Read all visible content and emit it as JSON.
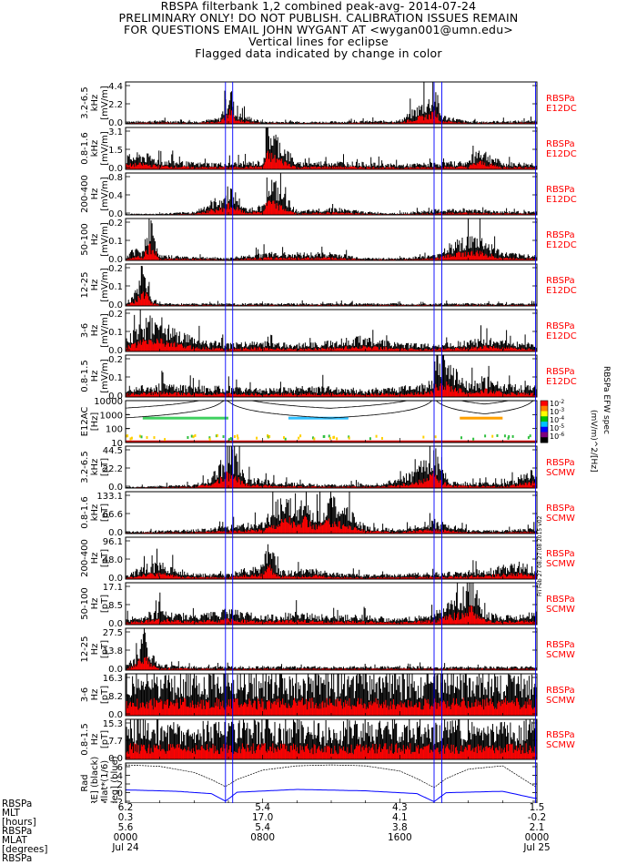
{
  "header": {
    "title": "RBSPA filterbank 1,2 combined peak-avg- 2014-07-24",
    "line2": "PRELIMINARY ONLY! DO NOT PUBLISH. CALIBRATION ISSUES REMAIN",
    "line3": "FOR QUESTIONS EMAIL JOHN WYGANT AT <wygan001@umn.edu>",
    "line4": "Vertical lines for eclipse",
    "line5": "Flagged data indicated by change in color"
  },
  "colors": {
    "frame": "#000000",
    "trace": "#000000",
    "flagged": "#ff0000",
    "eclipse": "#0000ff",
    "label": "#ff0000",
    "position": "#0000ff"
  },
  "eclipse_times_hours": [
    5.83,
    6.25,
    18.0,
    18.45,
    23.92
  ],
  "chart_data": [
    {
      "type": "area",
      "panel": "e12dc-3.2-6.5khz",
      "ylabel": [
        "3.2-6.5",
        "kHz",
        "[mV/m]"
      ],
      "yticks": [
        "4.4",
        "2.2",
        "0.0"
      ],
      "ylim": [
        0,
        4.4
      ],
      "tag": [
        "RBSPa",
        "E12DC"
      ],
      "series": [
        {
          "name": "peak",
          "x": [
            0,
            2,
            4,
            5.5,
            5.9,
            6.1,
            6.4,
            8,
            12,
            16,
            17.9,
            18.1,
            18.4,
            20,
            24
          ],
          "y": [
            0.2,
            0.3,
            0.2,
            0.5,
            2.2,
            3.6,
            1.0,
            0.2,
            0.2,
            0.3,
            2.5,
            3.2,
            0.8,
            0.2,
            0.3
          ]
        }
      ]
    },
    {
      "type": "area",
      "panel": "e12dc-0.8-1.6khz",
      "ylabel": [
        "0.8-1.6",
        "kHz",
        "[mV/m]"
      ],
      "yticks": [
        "3.1",
        "1.5",
        "0.0"
      ],
      "ylim": [
        0,
        3.1
      ],
      "tag": [
        "RBSPa",
        "E12DC"
      ],
      "series": [
        {
          "name": "peak",
          "x": [
            0,
            1,
            2,
            4,
            6,
            8,
            8.3,
            10,
            12,
            14,
            16,
            18,
            20,
            20.6,
            22,
            24
          ],
          "y": [
            0.8,
            1.0,
            0.6,
            0.4,
            0.4,
            0.5,
            2.8,
            0.4,
            0.5,
            0.4,
            0.3,
            0.4,
            0.5,
            1.4,
            0.4,
            0.4
          ]
        }
      ]
    },
    {
      "type": "area",
      "panel": "e12dc-200-400hz",
      "ylabel": [
        "200-400",
        "Hz",
        "[mV/m]"
      ],
      "yticks": [
        "0.8",
        "0.4",
        "0.0"
      ],
      "ylim": [
        0,
        0.8
      ],
      "tag": [
        "RBSPa",
        "E12DC"
      ],
      "series": [
        {
          "name": "peak",
          "x": [
            0,
            2,
            4,
            5.9,
            6.0,
            7,
            8,
            8.3,
            10,
            12,
            14,
            16,
            18,
            20,
            22,
            24
          ],
          "y": [
            0.02,
            0.02,
            0.05,
            0.35,
            0.5,
            0.1,
            0.15,
            0.65,
            0.05,
            0.12,
            0.05,
            0.03,
            0.08,
            0.1,
            0.06,
            0.05
          ]
        }
      ]
    },
    {
      "type": "area",
      "panel": "e12dc-50-100hz",
      "ylabel": [
        "50-100",
        "Hz",
        "[mV/m]"
      ],
      "yticks": [
        "0.2",
        "0.1",
        "0.0"
      ],
      "ylim": [
        0,
        0.2
      ],
      "tag": [
        "RBSPa",
        "E12DC"
      ],
      "series": [
        {
          "name": "peak",
          "x": [
            0,
            0.5,
            1,
            1.4,
            2,
            6,
            8,
            12,
            14,
            16,
            18,
            19.5,
            20.1,
            20.7,
            22,
            24
          ],
          "y": [
            0.01,
            0.05,
            0.04,
            0.18,
            0.02,
            0.01,
            0.03,
            0.03,
            0.01,
            0.01,
            0.02,
            0.09,
            0.09,
            0.09,
            0.03,
            0.02
          ]
        }
      ]
    },
    {
      "type": "area",
      "panel": "e12dc-12-25hz",
      "ylabel": [
        "12-25",
        "Hz",
        "[mV/m]"
      ],
      "yticks": [
        "0.2",
        "0.1",
        "0.0"
      ],
      "ylim": [
        0,
        0.2
      ],
      "tag": [
        "RBSPa",
        "E12DC"
      ],
      "series": [
        {
          "name": "peak",
          "x": [
            0,
            0.5,
            0.8,
            1.0,
            1.2,
            1.6,
            2,
            4,
            8,
            12,
            16,
            20,
            24
          ],
          "y": [
            0.01,
            0.05,
            0.1,
            0.18,
            0.13,
            0.03,
            0.01,
            0.01,
            0.01,
            0.01,
            0.01,
            0.01,
            0.01
          ]
        }
      ]
    },
    {
      "type": "area",
      "panel": "e12dc-3-6hz",
      "ylabel": [
        "3-6",
        "Hz",
        "[mV/m]"
      ],
      "yticks": [
        "0.2",
        "0.1",
        "0.0"
      ],
      "ylim": [
        0,
        0.2
      ],
      "tag": [
        "RBSPa",
        "E12DC"
      ],
      "series": [
        {
          "name": "peak",
          "x": [
            0,
            1,
            2,
            3,
            4,
            6,
            8,
            10,
            12,
            14,
            16,
            18,
            20,
            21,
            22,
            24
          ],
          "y": [
            0.05,
            0.12,
            0.14,
            0.08,
            0.05,
            0.03,
            0.04,
            0.03,
            0.04,
            0.06,
            0.03,
            0.03,
            0.04,
            0.06,
            0.04,
            0.03
          ]
        }
      ]
    },
    {
      "type": "area",
      "panel": "e12dc-0.8-1.5hz",
      "ylabel": [
        "0.8-1.5",
        "Hz",
        "[mV/m]"
      ],
      "yticks": [
        "0.2",
        "0.1",
        "0.0"
      ],
      "ylim": [
        0,
        0.2
      ],
      "tag": [
        "RBSPa",
        "E12DC"
      ],
      "series": [
        {
          "name": "peak",
          "x": [
            0,
            2,
            4,
            6,
            8,
            10,
            12,
            14,
            16,
            18,
            18.2,
            20,
            21,
            22,
            24
          ],
          "y": [
            0.04,
            0.05,
            0.04,
            0.04,
            0.03,
            0.04,
            0.04,
            0.03,
            0.04,
            0.06,
            0.18,
            0.05,
            0.08,
            0.05,
            0.04
          ]
        }
      ]
    },
    {
      "type": "heatmap",
      "panel": "e12ac-spectrogram",
      "ylabel": [
        "E12AC",
        "[Hz]"
      ],
      "yticks": [
        "10000",
        "1000",
        "100",
        "10"
      ],
      "ylim": [
        10,
        10000
      ],
      "yscale": "log",
      "tag": [],
      "colorbar": {
        "ticks": [
          "10^-2",
          "10^-3",
          "10^-4",
          "10^-5",
          "10^-6"
        ],
        "label": "(mV/m)^2/[Hz]",
        "title": "RBSPa EFW spec"
      }
    },
    {
      "type": "area",
      "panel": "scmw-3.2-6.5khz",
      "ylabel": [
        "3.2-6.5",
        "kHz",
        "[pT]"
      ],
      "yticks": [
        "44.5",
        "22.2",
        "0.0"
      ],
      "ylim": [
        0,
        44.5
      ],
      "tag": [
        "RBSPa",
        "SCMW"
      ],
      "series": [
        {
          "name": "peak",
          "x": [
            0,
            2,
            4,
            5,
            5.5,
            6,
            6.4,
            7,
            9,
            12,
            15,
            17,
            18,
            18.3,
            19,
            22,
            23.8,
            24
          ],
          "y": [
            1,
            2,
            3,
            10,
            22,
            38,
            30,
            10,
            5,
            3,
            4,
            15,
            42,
            20,
            6,
            4,
            15,
            8
          ]
        }
      ]
    },
    {
      "type": "area",
      "panel": "scmw-0.8-1.6khz",
      "ylabel": [
        "0.8-1.6",
        "kHz",
        "[pT]"
      ],
      "yticks": [
        "133.1",
        "66.6",
        "0.0"
      ],
      "ylim": [
        0,
        133.1
      ],
      "tag": [
        "RBSPa",
        "SCMW"
      ],
      "series": [
        {
          "name": "peak",
          "x": [
            0,
            2,
            4,
            6,
            8,
            9,
            9.5,
            10,
            10.5,
            11,
            12,
            14,
            16,
            18,
            20,
            22,
            24
          ],
          "y": [
            5,
            8,
            10,
            20,
            30,
            90,
            125,
            60,
            110,
            50,
            100,
            20,
            10,
            35,
            10,
            8,
            15
          ]
        }
      ]
    },
    {
      "type": "area",
      "panel": "scmw-200-400hz",
      "ylabel": [
        "200-400",
        "Hz",
        "[pT]"
      ],
      "yticks": [
        "96.1",
        "48.0",
        "0.0"
      ],
      "ylim": [
        0,
        96.1
      ],
      "tag": [
        "RBSPa",
        "SCMW"
      ],
      "series": [
        {
          "name": "peak",
          "x": [
            0,
            1,
            2,
            3,
            4,
            6,
            7,
            8,
            8.3,
            9,
            11,
            12,
            14,
            16,
            18,
            20,
            22,
            23,
            24
          ],
          "y": [
            5,
            25,
            30,
            20,
            10,
            10,
            20,
            25,
            80,
            15,
            20,
            12,
            8,
            10,
            12,
            15,
            25,
            30,
            20
          ]
        }
      ]
    },
    {
      "type": "area",
      "panel": "scmw-50-100hz",
      "ylabel": [
        "50-100",
        "Hz",
        "[pT]"
      ],
      "yticks": [
        "17.1",
        "8.5",
        "0.0"
      ],
      "ylim": [
        0,
        17.1
      ],
      "tag": [
        "RBSPa",
        "SCMW"
      ],
      "series": [
        {
          "name": "peak",
          "x": [
            0,
            2,
            4,
            6,
            8,
            10,
            12,
            14,
            16,
            18,
            19.5,
            20.2,
            21,
            22,
            24
          ],
          "y": [
            2,
            5,
            3,
            5,
            3,
            4,
            3,
            3,
            2,
            4,
            11,
            16,
            4,
            3,
            4
          ]
        }
      ]
    },
    {
      "type": "area",
      "panel": "scmw-12-25hz",
      "ylabel": [
        "12-25",
        "Hz",
        "[pT]"
      ],
      "yticks": [
        "27.5",
        "13.8",
        "0.0"
      ],
      "ylim": [
        0,
        27.5
      ],
      "tag": [
        "RBSPa",
        "SCMW"
      ],
      "series": [
        {
          "name": "peak",
          "x": [
            0,
            0.6,
            0.9,
            1.1,
            1.4,
            2,
            4,
            8,
            12,
            16,
            20,
            24
          ],
          "y": [
            2,
            8,
            18,
            26,
            10,
            3,
            2,
            2,
            2,
            2,
            2,
            2
          ]
        }
      ]
    },
    {
      "type": "area",
      "panel": "scmw-3-6hz",
      "ylabel": [
        "3-6",
        "Hz",
        "[pT]"
      ],
      "yticks": [
        "16.3",
        "8.2",
        "0.0"
      ],
      "ylim": [
        0,
        16.3
      ],
      "tag": [
        "RBSPa",
        "SCMW"
      ],
      "series": [
        {
          "name": "peak",
          "x": [
            0,
            4,
            8,
            12,
            16,
            20,
            24
          ],
          "y": [
            13,
            13.5,
            13,
            13.5,
            13,
            13.5,
            13
          ]
        }
      ]
    },
    {
      "type": "area",
      "panel": "scmw-0.8-1.5hz",
      "ylabel": [
        "0.8-1.5",
        "Hz",
        "[pT]"
      ],
      "yticks": [
        "15.3",
        "7.7",
        "0.0"
      ],
      "ylim": [
        0,
        15.3
      ],
      "tag": [
        "RBSPa",
        "SCMW"
      ],
      "series": [
        {
          "name": "peak",
          "x": [
            0,
            4,
            8,
            12,
            16,
            20,
            24
          ],
          "y": [
            12,
            11,
            12,
            11,
            12,
            11,
            12
          ]
        }
      ]
    },
    {
      "type": "line",
      "panel": "orbit-position",
      "ylabel": [
        "Rad",
        "[RE] (black)",
        "Mlat*(1/6)",
        "[deg] (blue)"
      ],
      "yticks": [
        "6",
        "4",
        "2",
        "0",
        "-2"
      ],
      "ylim": [
        -2,
        6.5
      ],
      "tag": [],
      "series": [
        {
          "name": "Rad",
          "x": [
            0,
            2,
            4,
            5,
            5.83,
            6.5,
            8,
            10,
            12,
            14,
            16,
            17,
            18.0,
            18.7,
            20,
            22,
            23.9,
            24
          ],
          "y": [
            6.1,
            5.8,
            4.5,
            3.0,
            1.5,
            3.0,
            5.0,
            5.9,
            6.1,
            5.9,
            4.8,
            3.2,
            1.3,
            3.2,
            5.2,
            5.9,
            1.5,
            1.6
          ]
        },
        {
          "name": "Mlat",
          "x": [
            0,
            3,
            5,
            5.83,
            6.5,
            10,
            14,
            17,
            18.0,
            18.7,
            22,
            23.9,
            24
          ],
          "y": [
            0.8,
            0.5,
            0.0,
            -1.6,
            0.3,
            0.9,
            0.6,
            0.0,
            -1.7,
            0.2,
            0.5,
            -1.0,
            -1.0
          ]
        }
      ]
    }
  ],
  "x_axis": {
    "row_labels": [
      "RBSPa",
      "MLT",
      "[hours]",
      "RBSPa",
      "MLAT",
      "[degrees]",
      "RBSPa"
    ],
    "columns": [
      {
        "hour": 0,
        "values": [
          "6.2",
          "0.3",
          "5.6",
          "0000",
          "Jul 24"
        ]
      },
      {
        "hour": 8,
        "values": [
          "5.4",
          "17.0",
          "5.4",
          "0800",
          ""
        ]
      },
      {
        "hour": 16,
        "values": [
          "4.3",
          "4.1",
          "3.8",
          "1600",
          ""
        ]
      },
      {
        "hour": 24,
        "values": [
          "1.5",
          "-0.2",
          "2.1",
          "0000",
          "Jul 25"
        ]
      }
    ]
  },
  "stamp": "Fri Feb 27 08:27:08 2015 v02"
}
